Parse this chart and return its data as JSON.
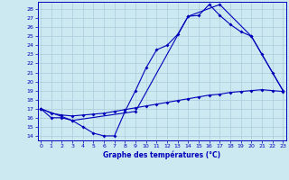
{
  "title": "Graphe des températures (°C)",
  "bg_color": "#cce8f0",
  "grid_color": "#aaccdd",
  "line_color": "#0000bb",
  "x_ticks": [
    0,
    1,
    2,
    3,
    4,
    5,
    6,
    7,
    8,
    9,
    10,
    11,
    12,
    13,
    14,
    15,
    16,
    17,
    18,
    19,
    20,
    21,
    22,
    23
  ],
  "y_ticks": [
    14,
    15,
    16,
    17,
    18,
    19,
    20,
    21,
    22,
    23,
    24,
    25,
    26,
    27,
    28
  ],
  "ylim": [
    13.5,
    28.8
  ],
  "xlim": [
    -0.3,
    23.3
  ],
  "line1_x": [
    0,
    1,
    2,
    3,
    4,
    5,
    6,
    7,
    8,
    9,
    10,
    11,
    12,
    13,
    14,
    15,
    16,
    17,
    18,
    19,
    20,
    21,
    22,
    23
  ],
  "line1_y": [
    17.0,
    16.0,
    16.0,
    15.7,
    15.0,
    14.3,
    14.0,
    14.0,
    16.7,
    19.0,
    21.5,
    23.5,
    24.0,
    25.2,
    27.2,
    27.3,
    28.5,
    27.3,
    26.3,
    25.5,
    25.0,
    23.0,
    21.0,
    19.0
  ],
  "line2_x": [
    0,
    3,
    9,
    14,
    17,
    20,
    23
  ],
  "line2_y": [
    17.0,
    15.7,
    16.7,
    27.2,
    28.5,
    25.0,
    19.0
  ],
  "line3_x": [
    0,
    1,
    2,
    3,
    4,
    5,
    6,
    7,
    8,
    9,
    10,
    11,
    12,
    13,
    14,
    15,
    16,
    17,
    18,
    19,
    20,
    21,
    22,
    23
  ],
  "line3_y": [
    17.0,
    16.5,
    16.3,
    16.2,
    16.3,
    16.4,
    16.5,
    16.7,
    16.9,
    17.1,
    17.3,
    17.5,
    17.7,
    17.9,
    18.1,
    18.3,
    18.5,
    18.6,
    18.8,
    18.9,
    19.0,
    19.1,
    19.0,
    18.9
  ]
}
